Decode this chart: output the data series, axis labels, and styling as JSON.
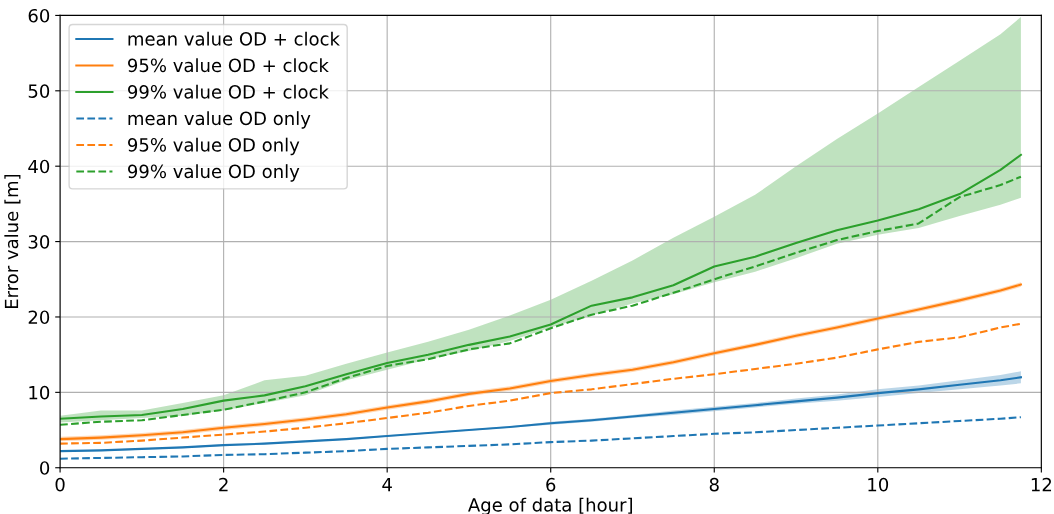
{
  "chart_data": {
    "type": "line",
    "xlabel": "Age of data [hour]",
    "ylabel": "Error value [m]",
    "x": [
      0,
      0.5,
      1,
      1.5,
      2,
      2.5,
      3,
      3.5,
      4,
      4.5,
      5,
      5.5,
      6,
      6.5,
      7,
      7.5,
      8,
      8.5,
      9,
      9.5,
      10,
      10.5,
      11,
      11.5,
      11.75
    ],
    "xlim": [
      0,
      12
    ],
    "xticks": [
      0,
      2,
      4,
      6,
      8,
      10,
      12
    ],
    "ylim": [
      0,
      60
    ],
    "yticks": [
      0,
      10,
      20,
      30,
      40,
      50,
      60
    ],
    "grid": true,
    "legend": "top left",
    "series": [
      {
        "name": "mean value OD + clock",
        "color": "#1f77b4",
        "line_style": "solid",
        "values": [
          2.2,
          2.3,
          2.5,
          2.7,
          3.0,
          3.2,
          3.5,
          3.8,
          4.2,
          4.6,
          5.0,
          5.4,
          5.9,
          6.3,
          6.8,
          7.3,
          7.8,
          8.3,
          8.8,
          9.3,
          9.9,
          10.4,
          11.0,
          11.6,
          12.0
        ],
        "lower": [
          2.1,
          2.2,
          2.4,
          2.6,
          2.9,
          3.1,
          3.4,
          3.7,
          4.1,
          4.5,
          4.9,
          5.3,
          5.7,
          6.1,
          6.6,
          7.0,
          7.5,
          8.0,
          8.5,
          8.9,
          9.4,
          9.9,
          10.4,
          10.9,
          11.2
        ],
        "upper": [
          2.3,
          2.4,
          2.6,
          2.8,
          3.1,
          3.3,
          3.6,
          3.9,
          4.3,
          4.7,
          5.1,
          5.5,
          6.1,
          6.5,
          7.0,
          7.6,
          8.1,
          8.6,
          9.2,
          9.7,
          10.4,
          10.9,
          11.6,
          12.3,
          12.8
        ]
      },
      {
        "name": "95% value OD + clock",
        "color": "#ff7f0e",
        "line_style": "solid",
        "values": [
          3.8,
          4.0,
          4.3,
          4.7,
          5.3,
          5.8,
          6.4,
          7.1,
          8.0,
          8.8,
          9.8,
          10.5,
          11.5,
          12.3,
          13.0,
          14.0,
          15.2,
          16.3,
          17.5,
          18.6,
          19.8,
          21.0,
          22.2,
          23.5,
          24.3
        ],
        "lower": [
          3.5,
          3.7,
          4.0,
          4.4,
          5.0,
          5.5,
          6.1,
          6.8,
          7.7,
          8.5,
          9.5,
          10.2,
          11.2,
          12.0,
          12.7,
          13.7,
          14.9,
          16.0,
          17.2,
          18.3,
          19.5,
          20.7,
          21.9,
          23.2,
          24.0
        ],
        "upper": [
          4.1,
          4.3,
          4.6,
          5.0,
          5.6,
          6.1,
          6.7,
          7.4,
          8.3,
          9.1,
          10.1,
          10.8,
          11.8,
          12.6,
          13.3,
          14.3,
          15.5,
          16.6,
          17.8,
          18.9,
          20.1,
          21.3,
          22.5,
          23.8,
          24.6
        ]
      },
      {
        "name": "99% value OD + clock",
        "color": "#2ca02c",
        "line_style": "solid",
        "values": [
          6.5,
          6.8,
          7.0,
          7.8,
          8.9,
          9.6,
          10.8,
          12.4,
          13.9,
          15.0,
          16.3,
          17.4,
          19.0,
          21.5,
          22.6,
          24.2,
          26.7,
          28.0,
          29.8,
          31.5,
          32.8,
          34.3,
          36.3,
          39.5,
          41.5
        ],
        "lower": [
          6.0,
          6.3,
          6.6,
          6.9,
          7.6,
          8.6,
          9.6,
          11.6,
          13.0,
          14.4,
          15.5,
          16.8,
          18.6,
          20.2,
          21.8,
          23.0,
          24.6,
          26.0,
          27.8,
          29.7,
          30.9,
          31.8,
          33.4,
          34.9,
          35.8
        ],
        "upper": [
          6.9,
          7.6,
          7.6,
          8.6,
          9.6,
          11.6,
          12.2,
          13.8,
          15.3,
          16.7,
          18.3,
          20.2,
          22.3,
          24.8,
          27.5,
          30.5,
          33.3,
          36.2,
          40.0,
          43.6,
          47.0,
          50.5,
          54.0,
          57.5,
          59.8
        ]
      },
      {
        "name": "mean value OD only",
        "color": "#1f77b4",
        "line_style": "dashed",
        "values": [
          1.2,
          1.3,
          1.4,
          1.5,
          1.7,
          1.8,
          2.0,
          2.2,
          2.5,
          2.7,
          2.9,
          3.1,
          3.4,
          3.6,
          3.9,
          4.2,
          4.5,
          4.7,
          5.0,
          5.3,
          5.6,
          5.9,
          6.2,
          6.5,
          6.7
        ]
      },
      {
        "name": "95% value OD only",
        "color": "#ff7f0e",
        "line_style": "dashed",
        "values": [
          3.2,
          3.3,
          3.6,
          4.0,
          4.4,
          4.8,
          5.3,
          5.9,
          6.6,
          7.3,
          8.2,
          8.9,
          9.9,
          10.4,
          11.1,
          11.8,
          12.4,
          13.1,
          13.8,
          14.6,
          15.7,
          16.7,
          17.3,
          18.6,
          19.1
        ]
      },
      {
        "name": "99% value OD only",
        "color": "#2ca02c",
        "line_style": "dashed",
        "values": [
          5.7,
          6.1,
          6.3,
          7.0,
          7.7,
          8.8,
          10.0,
          11.9,
          13.5,
          14.4,
          15.7,
          16.5,
          18.5,
          20.3,
          21.5,
          23.2,
          25.0,
          26.7,
          28.5,
          30.2,
          31.4,
          32.4,
          35.9,
          37.5,
          38.6
        ]
      }
    ]
  }
}
